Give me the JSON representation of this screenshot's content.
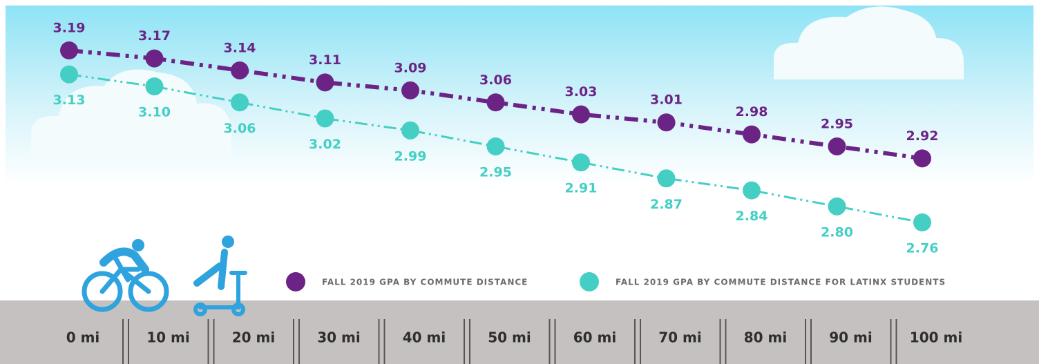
{
  "chart_data": {
    "type": "line",
    "categories": [
      "0 mi",
      "10 mi",
      "20 mi",
      "30 mi",
      "40 mi",
      "50 mi",
      "60 mi",
      "70 mi",
      "80 mi",
      "90 mi",
      "100 mi"
    ],
    "series": [
      {
        "name": "FALL 2019 GPA BY COMMUTE DISTANCE",
        "color": "#6b2486",
        "values": [
          3.19,
          3.17,
          3.14,
          3.11,
          3.09,
          3.06,
          3.03,
          3.01,
          2.98,
          2.95,
          2.92
        ],
        "value_labels": [
          "3.19",
          "3.17",
          "3.14",
          "3.11",
          "3.09",
          "3.06",
          "3.03",
          "3.01",
          "2.98",
          "2.95",
          "2.92"
        ]
      },
      {
        "name": "FALL 2019 GPA BY COMMUTE DISTANCE FOR LATINX STUDENTS",
        "color": "#45cfc4",
        "values": [
          3.13,
          3.1,
          3.06,
          3.02,
          2.99,
          2.95,
          2.91,
          2.87,
          2.84,
          2.8,
          2.76
        ],
        "value_labels": [
          "3.13",
          "3.10",
          "3.06",
          "3.02",
          "2.99",
          "2.95",
          "2.91",
          "2.87",
          "2.84",
          "2.80",
          "2.76"
        ]
      }
    ]
  }
}
